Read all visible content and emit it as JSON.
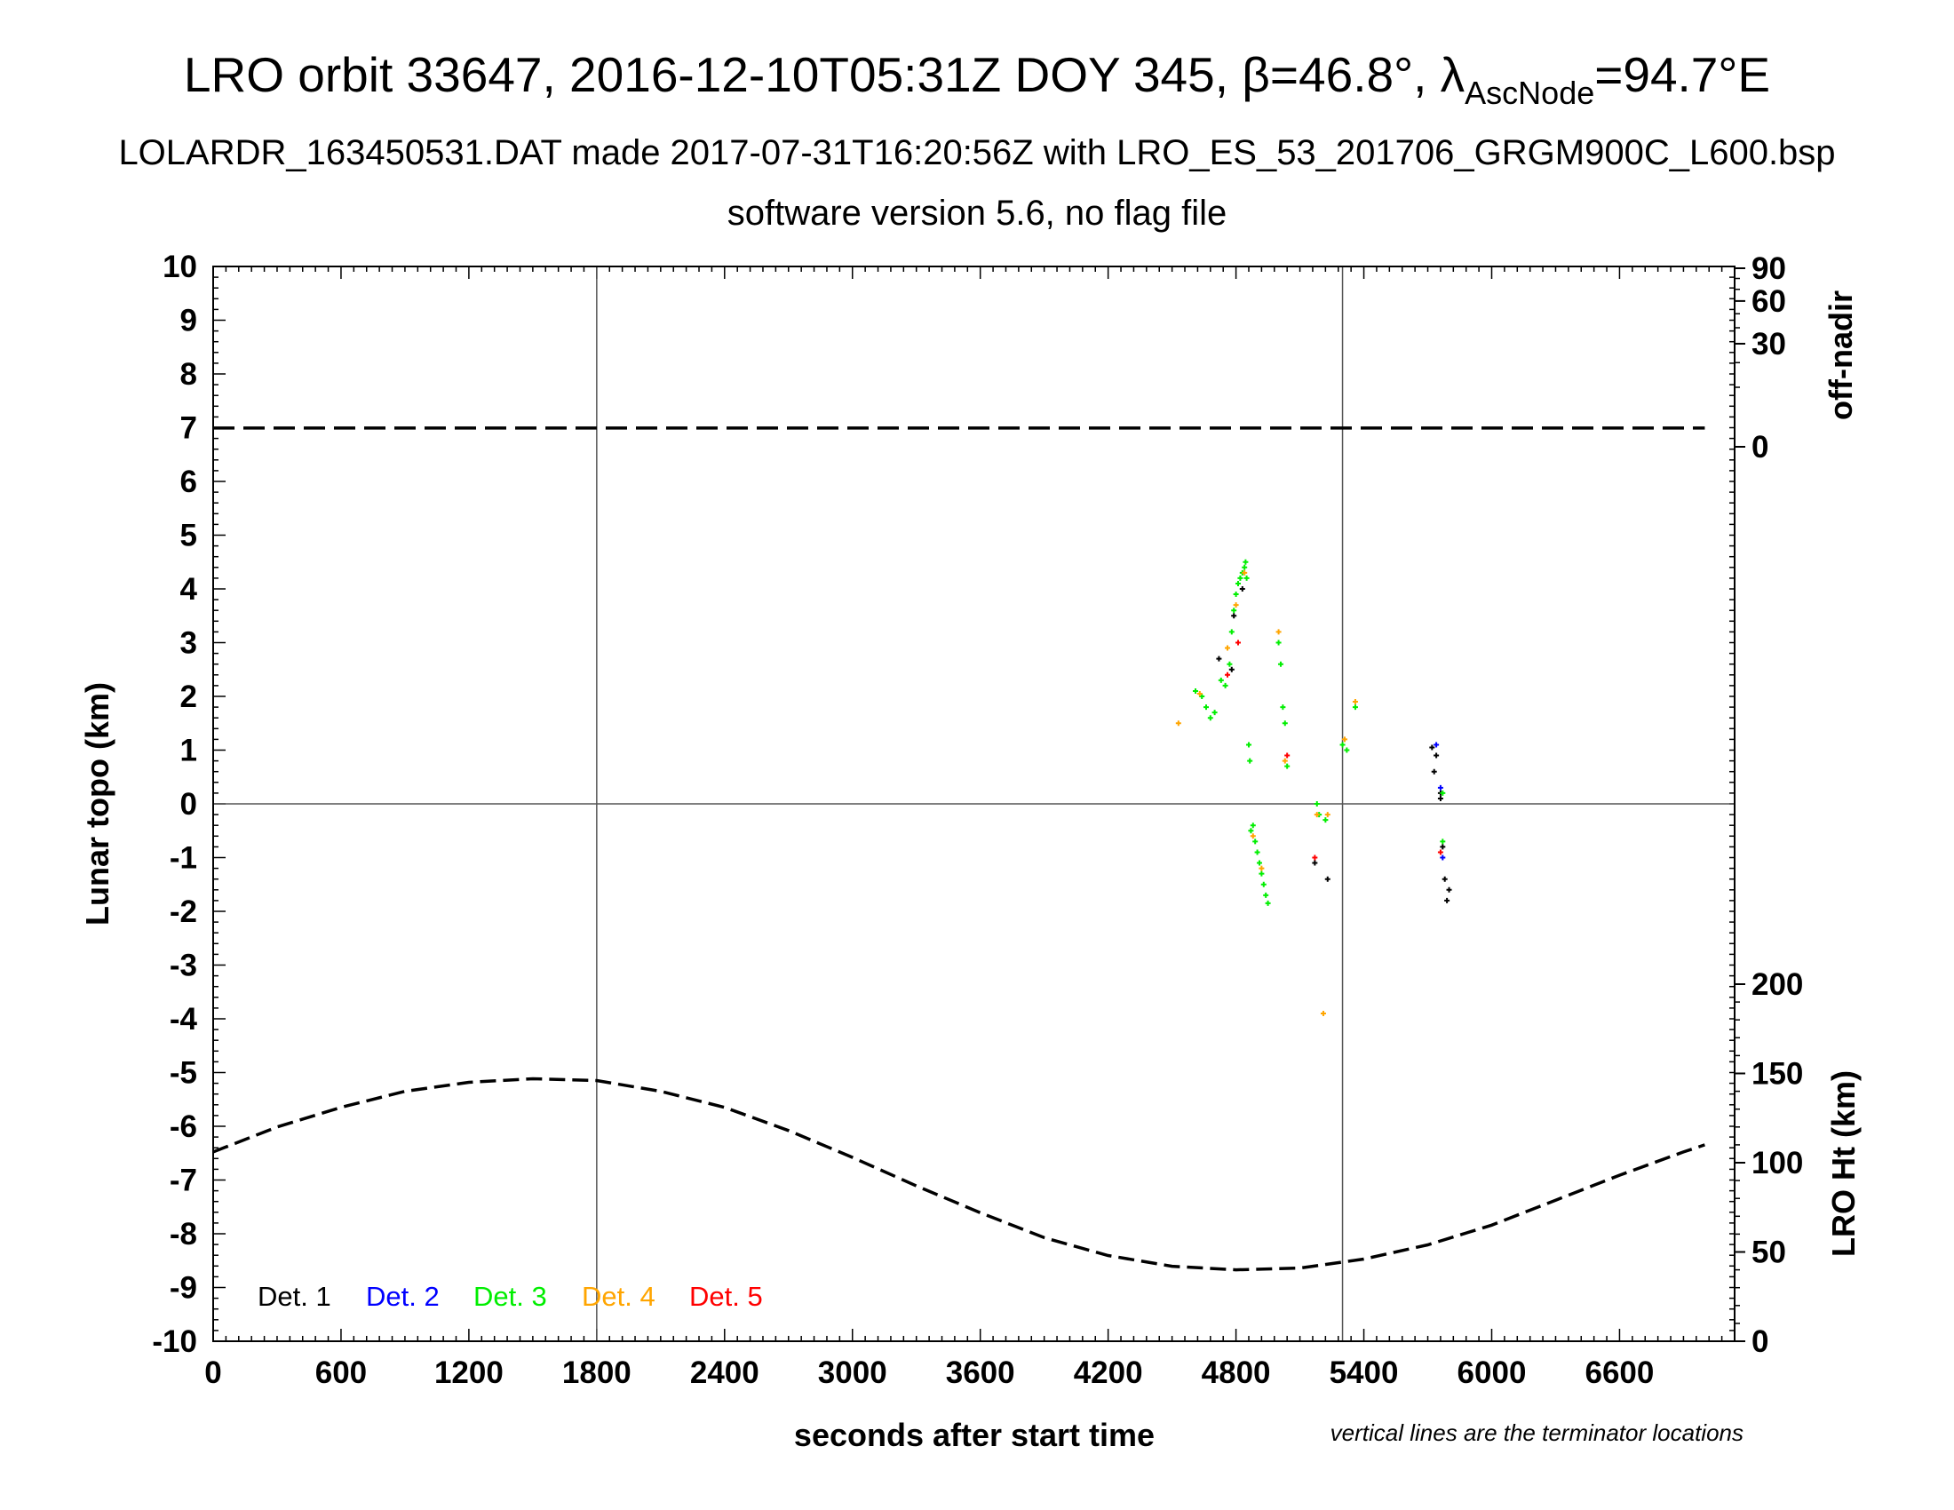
{
  "title": {
    "prefix": "LRO orbit 33647, 2016-12-10T05:31Z DOY 345, β=46.8°, λ",
    "sub": "AscNode",
    "suffix": "=94.7°E"
  },
  "subtitle1": "LOLARDR_163450531.DAT made 2017-07-31T16:20:56Z with LRO_ES_53_201706_GRGM900C_L600.bsp",
  "subtitle2": "software version 5.6, no flag file",
  "chart_data": {
    "type": "scatter",
    "xlabel": "seconds after start time",
    "ylabel": "Lunar topo (km)",
    "y2label_top": "off-nadir",
    "y2label_bottom": "LRO Ht (km)",
    "note": "vertical lines are the terminator locations",
    "xlim": [
      0,
      7140
    ],
    "ylim": [
      -10,
      10
    ],
    "x_ticks": [
      "0",
      "600",
      "1200",
      "1800",
      "2400",
      "3000",
      "3600",
      "4200",
      "4800",
      "5400",
      "6000",
      "6600"
    ],
    "y_ticks": [
      "10",
      "9",
      "8",
      "7",
      "6",
      "5",
      "4",
      "3",
      "2",
      "1",
      "0",
      "-1",
      "-2",
      "-3",
      "-4",
      "-5",
      "-6",
      "-7",
      "-8",
      "-9",
      "-10"
    ],
    "offnadir_ticks": [
      "90",
      "60",
      "30",
      "0"
    ],
    "height_ticks": [
      "200",
      "150",
      "100",
      "50",
      "0"
    ],
    "terminators": [
      1800,
      5300
    ],
    "grid": false,
    "legend_position": "bottom-left",
    "legend": [
      {
        "name": "Det. 1",
        "color": "#000000"
      },
      {
        "name": "Det. 2",
        "color": "#0000ff"
      },
      {
        "name": "Det. 3",
        "color": "#00ee00"
      },
      {
        "name": "Det. 4",
        "color": "#ffa500"
      },
      {
        "name": "Det. 5",
        "color": "#ff0000"
      }
    ],
    "offnadir_series": {
      "name": "off-nadir",
      "x": [
        0,
        7000
      ],
      "values_deg": [
        1,
        1
      ]
    },
    "height_series": {
      "name": "LRO Ht",
      "x": [
        0,
        300,
        600,
        900,
        1200,
        1500,
        1800,
        2100,
        2400,
        2700,
        3000,
        3300,
        3600,
        3900,
        4200,
        4500,
        4800,
        5100,
        5400,
        5700,
        6000,
        6300,
        6600,
        6900,
        7000
      ],
      "values_km": [
        106,
        120,
        131,
        140,
        145,
        147,
        146,
        140,
        131,
        118,
        103,
        87,
        72,
        58,
        48,
        42,
        40,
        41,
        46,
        54,
        65,
        79,
        93,
        106,
        110
      ]
    },
    "series": [
      {
        "name": "Det. 1",
        "points": [
          [
            4720,
            2.7
          ],
          [
            4790,
            3.5
          ],
          [
            4830,
            4.0
          ],
          [
            4780,
            2.5
          ],
          [
            5170,
            -1.1
          ],
          [
            5230,
            -1.4
          ],
          [
            5720,
            1.05
          ],
          [
            5740,
            0.9
          ],
          [
            5760,
            0.2
          ],
          [
            5770,
            -0.8
          ],
          [
            5780,
            -1.4
          ],
          [
            5790,
            -1.8
          ],
          [
            5800,
            -1.6
          ],
          [
            5730,
            0.6
          ],
          [
            5760,
            0.1
          ]
        ]
      },
      {
        "name": "Det. 2",
        "points": [
          [
            5740,
            1.1
          ],
          [
            5770,
            -1.0
          ],
          [
            5760,
            0.3
          ]
        ]
      },
      {
        "name": "Det. 3",
        "points": [
          [
            4610,
            2.1
          ],
          [
            4640,
            2.0
          ],
          [
            4660,
            1.8
          ],
          [
            4680,
            1.6
          ],
          [
            4700,
            1.7
          ],
          [
            4730,
            2.3
          ],
          [
            4750,
            2.2
          ],
          [
            4770,
            2.6
          ],
          [
            4780,
            3.2
          ],
          [
            4790,
            3.6
          ],
          [
            4800,
            3.9
          ],
          [
            4810,
            4.1
          ],
          [
            4820,
            4.2
          ],
          [
            4830,
            4.3
          ],
          [
            4840,
            4.4
          ],
          [
            4845,
            4.5
          ],
          [
            4850,
            4.2
          ],
          [
            4860,
            1.1
          ],
          [
            4865,
            0.8
          ],
          [
            4870,
            -0.5
          ],
          [
            4880,
            -0.4
          ],
          [
            4890,
            -0.7
          ],
          [
            4900,
            -0.9
          ],
          [
            4910,
            -1.1
          ],
          [
            4920,
            -1.3
          ],
          [
            4930,
            -1.5
          ],
          [
            4940,
            -1.7
          ],
          [
            4950,
            -1.85
          ],
          [
            5000,
            3.0
          ],
          [
            5010,
            2.6
          ],
          [
            5020,
            1.8
          ],
          [
            5030,
            1.5
          ],
          [
            5040,
            0.7
          ],
          [
            5180,
            0.0
          ],
          [
            5190,
            -0.2
          ],
          [
            5220,
            -0.3
          ],
          [
            5300,
            1.1
          ],
          [
            5320,
            1.0
          ],
          [
            5360,
            1.8
          ],
          [
            5770,
            0.2
          ],
          [
            5770,
            -0.7
          ]
        ]
      },
      {
        "name": "Det. 4",
        "points": [
          [
            4530,
            1.5
          ],
          [
            4630,
            2.05
          ],
          [
            4760,
            2.9
          ],
          [
            4800,
            3.7
          ],
          [
            4840,
            4.3
          ],
          [
            4880,
            -0.6
          ],
          [
            4920,
            -1.2
          ],
          [
            5000,
            3.2
          ],
          [
            5030,
            0.8
          ],
          [
            5180,
            -0.2
          ],
          [
            5210,
            -3.9
          ],
          [
            5230,
            -0.2
          ],
          [
            5310,
            1.2
          ],
          [
            5360,
            1.9
          ]
        ]
      },
      {
        "name": "Det. 5",
        "points": [
          [
            4760,
            2.4
          ],
          [
            4810,
            3.0
          ],
          [
            5040,
            0.9
          ],
          [
            5170,
            -1.0
          ],
          [
            5760,
            -0.9
          ]
        ]
      }
    ]
  }
}
